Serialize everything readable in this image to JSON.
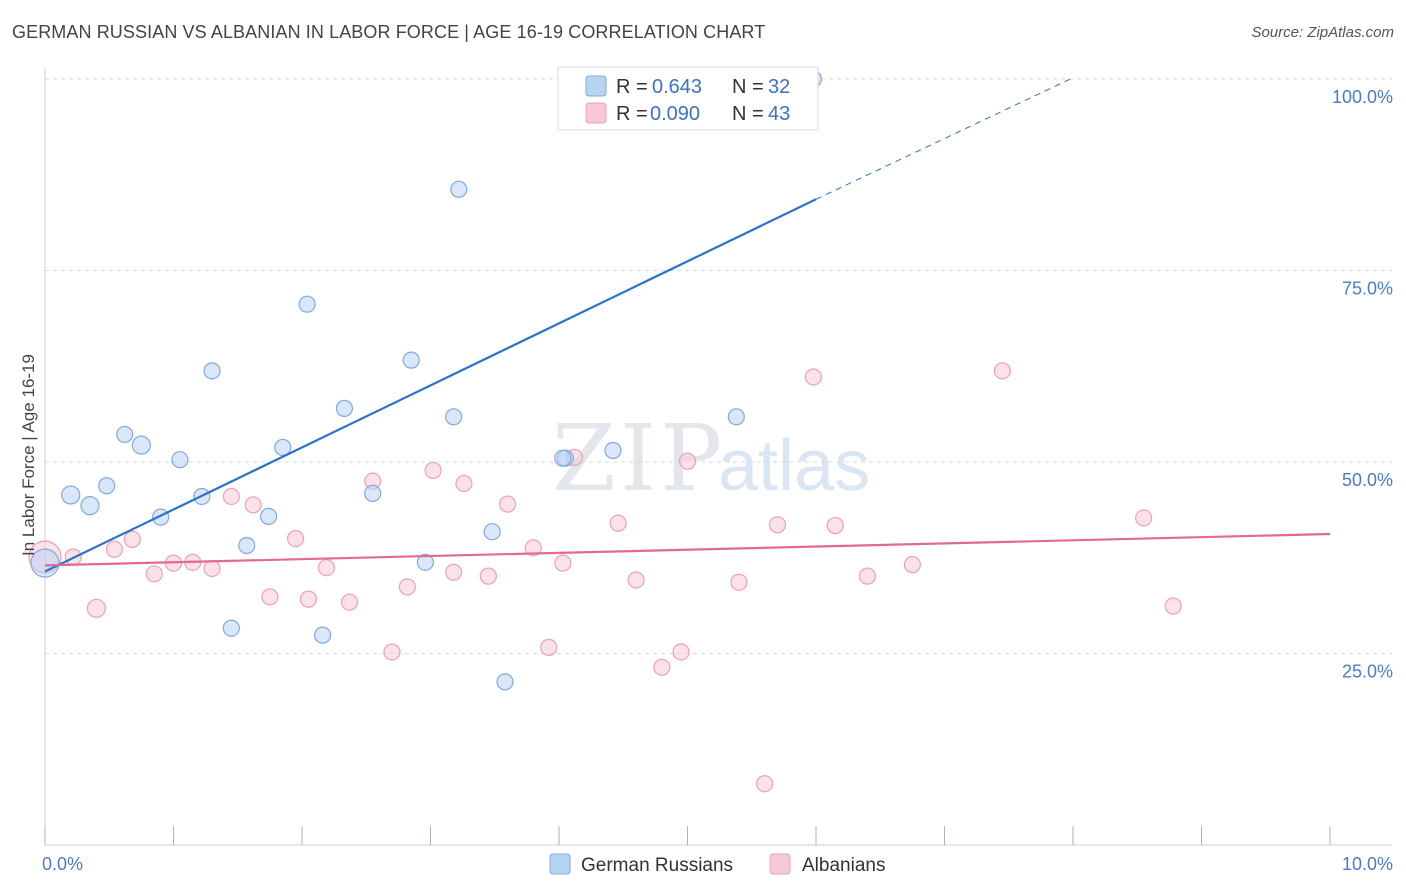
{
  "title": "GERMAN RUSSIAN VS ALBANIAN IN LABOR FORCE | AGE 16-19 CORRELATION CHART",
  "source": "Source: ZipAtlas.com",
  "watermark": {
    "left": "ZIP",
    "right": "atlas"
  },
  "legend": {
    "rows": [
      {
        "r_label": "R =",
        "r_value": "0.643",
        "n_label": "N =",
        "n_value": "32"
      },
      {
        "r_label": "R =",
        "r_value": "0.090",
        "n_label": "N =",
        "n_value": "43"
      }
    ]
  },
  "colors": {
    "blue_fill": "#b9d3f2",
    "blue_stroke": "#7eaae0",
    "blue_line": "#2a72cc",
    "pink_fill": "#f8c8d6",
    "pink_stroke": "#eea0b8",
    "pink_line": "#e06a92",
    "grid": "#d6d9de",
    "axis_label": "#4a7cc9"
  },
  "chart_data": {
    "type": "scatter",
    "title": "GERMAN RUSSIAN VS ALBANIAN IN LABOR FORCE | AGE 16-19 CORRELATION CHART",
    "xlabel": "",
    "ylabel": "In Labor Force | Age 16-19",
    "xlim": [
      0,
      10
    ],
    "ylim": [
      0,
      100
    ],
    "x_tick_labels": [
      "0.0%",
      "10.0%"
    ],
    "y_tick_labels": [
      "25.0%",
      "50.0%",
      "75.0%",
      "100.0%"
    ],
    "y_ticks": [
      25,
      50,
      75,
      100
    ],
    "grid": true,
    "legend_position": "top-center",
    "series": [
      {
        "name": "German Russians",
        "color": "#7eaae0",
        "r": 0.643,
        "n": 32,
        "trend": {
          "x0": 0.0,
          "y0": 35.7,
          "x1": 6.0,
          "y1": 84.3,
          "dash_to_x": 7.98,
          "dash_to_y": 100.0
        },
        "points": [
          [
            0.0,
            36.8,
            14
          ],
          [
            0.2,
            45.7,
            9
          ],
          [
            0.35,
            44.3,
            9
          ],
          [
            0.48,
            46.9,
            8
          ],
          [
            0.62,
            53.6,
            8
          ],
          [
            0.75,
            52.2,
            9
          ],
          [
            0.9,
            42.8,
            8
          ],
          [
            1.05,
            50.3,
            8
          ],
          [
            1.22,
            45.5,
            8
          ],
          [
            1.3,
            61.9,
            8
          ],
          [
            1.45,
            28.3,
            8
          ],
          [
            1.57,
            39.1,
            8
          ],
          [
            1.74,
            42.9,
            8
          ],
          [
            1.85,
            51.9,
            8
          ],
          [
            2.04,
            70.6,
            8
          ],
          [
            2.16,
            27.4,
            8
          ],
          [
            2.33,
            57.0,
            8
          ],
          [
            2.55,
            45.9,
            8
          ],
          [
            2.85,
            63.3,
            8
          ],
          [
            2.96,
            36.9,
            8
          ],
          [
            3.18,
            55.9,
            8
          ],
          [
            3.22,
            85.6,
            8
          ],
          [
            3.48,
            40.9,
            8
          ],
          [
            3.58,
            21.3,
            8
          ],
          [
            4.05,
            50.5,
            8
          ],
          [
            4.42,
            51.5,
            8
          ],
          [
            4.8,
            100.0,
            8
          ],
          [
            5.05,
            100.0,
            8
          ],
          [
            5.45,
            100.0,
            8
          ],
          [
            5.98,
            100.0,
            8
          ],
          [
            5.38,
            55.9,
            8
          ],
          [
            4.03,
            50.5,
            8
          ]
        ]
      },
      {
        "name": "Albanians",
        "color": "#eea0b8",
        "r": 0.09,
        "n": 43,
        "trend": {
          "x0": 0.0,
          "y0": 36.5,
          "x1": 10.0,
          "y1": 40.6
        },
        "points": [
          [
            0.0,
            37.6,
            16
          ],
          [
            0.22,
            37.6,
            8
          ],
          [
            0.4,
            30.9,
            9
          ],
          [
            0.54,
            38.6,
            8
          ],
          [
            0.68,
            39.9,
            8
          ],
          [
            0.85,
            35.4,
            8
          ],
          [
            1.0,
            36.8,
            8
          ],
          [
            1.15,
            36.9,
            8
          ],
          [
            1.3,
            36.1,
            8
          ],
          [
            1.45,
            45.5,
            8
          ],
          [
            1.62,
            44.4,
            8
          ],
          [
            1.75,
            32.4,
            8
          ],
          [
            1.95,
            40.0,
            8
          ],
          [
            2.05,
            32.1,
            8
          ],
          [
            2.19,
            36.2,
            8
          ],
          [
            2.37,
            31.7,
            8
          ],
          [
            2.55,
            47.5,
            8
          ],
          [
            2.7,
            25.2,
            8
          ],
          [
            2.82,
            33.7,
            8
          ],
          [
            3.02,
            48.9,
            8
          ],
          [
            3.18,
            35.6,
            8
          ],
          [
            3.26,
            47.2,
            8
          ],
          [
            3.45,
            35.1,
            8
          ],
          [
            3.6,
            44.5,
            8
          ],
          [
            3.8,
            38.8,
            8
          ],
          [
            3.92,
            25.8,
            8
          ],
          [
            4.03,
            36.8,
            8
          ],
          [
            4.12,
            50.6,
            8
          ],
          [
            4.46,
            42.0,
            8
          ],
          [
            4.6,
            34.6,
            8
          ],
          [
            4.8,
            23.2,
            8
          ],
          [
            4.95,
            25.2,
            8
          ],
          [
            5.0,
            50.1,
            8
          ],
          [
            5.4,
            34.3,
            8
          ],
          [
            5.6,
            8.0,
            8
          ],
          [
            5.7,
            41.8,
            8
          ],
          [
            5.98,
            61.1,
            8
          ],
          [
            6.15,
            41.7,
            8
          ],
          [
            6.4,
            35.1,
            8
          ],
          [
            6.75,
            36.6,
            8
          ],
          [
            7.45,
            61.9,
            8
          ],
          [
            8.55,
            42.7,
            8
          ],
          [
            8.78,
            31.2,
            8
          ]
        ]
      }
    ]
  }
}
